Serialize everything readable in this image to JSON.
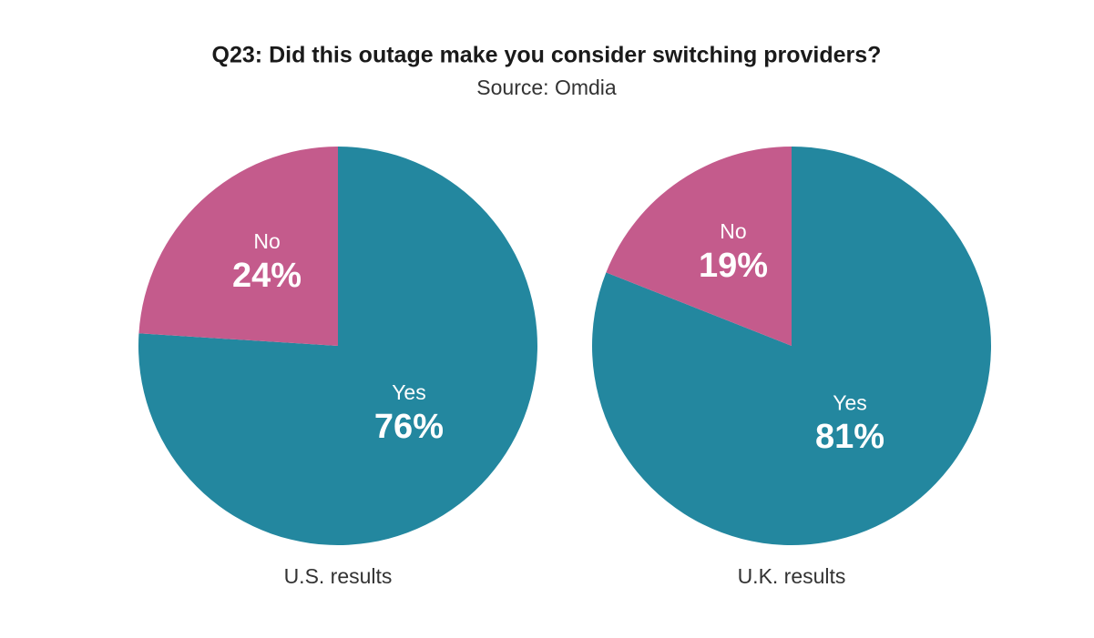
{
  "title": "Q23: Did this outage make you consider switching providers?",
  "subtitle": "Source: Omdia",
  "chart_data": [
    {
      "type": "pie",
      "caption": "U.S. results",
      "categories": [
        "Yes",
        "No"
      ],
      "values": [
        76,
        24
      ],
      "value_labels": [
        "76%",
        "24%"
      ],
      "colors": [
        "#23879f",
        "#c45b8c"
      ]
    },
    {
      "type": "pie",
      "caption": "U.K. results",
      "categories": [
        "Yes",
        "No"
      ],
      "values": [
        81,
        19
      ],
      "value_labels": [
        "81%",
        "19%"
      ],
      "colors": [
        "#23879f",
        "#c45b8c"
      ]
    }
  ]
}
